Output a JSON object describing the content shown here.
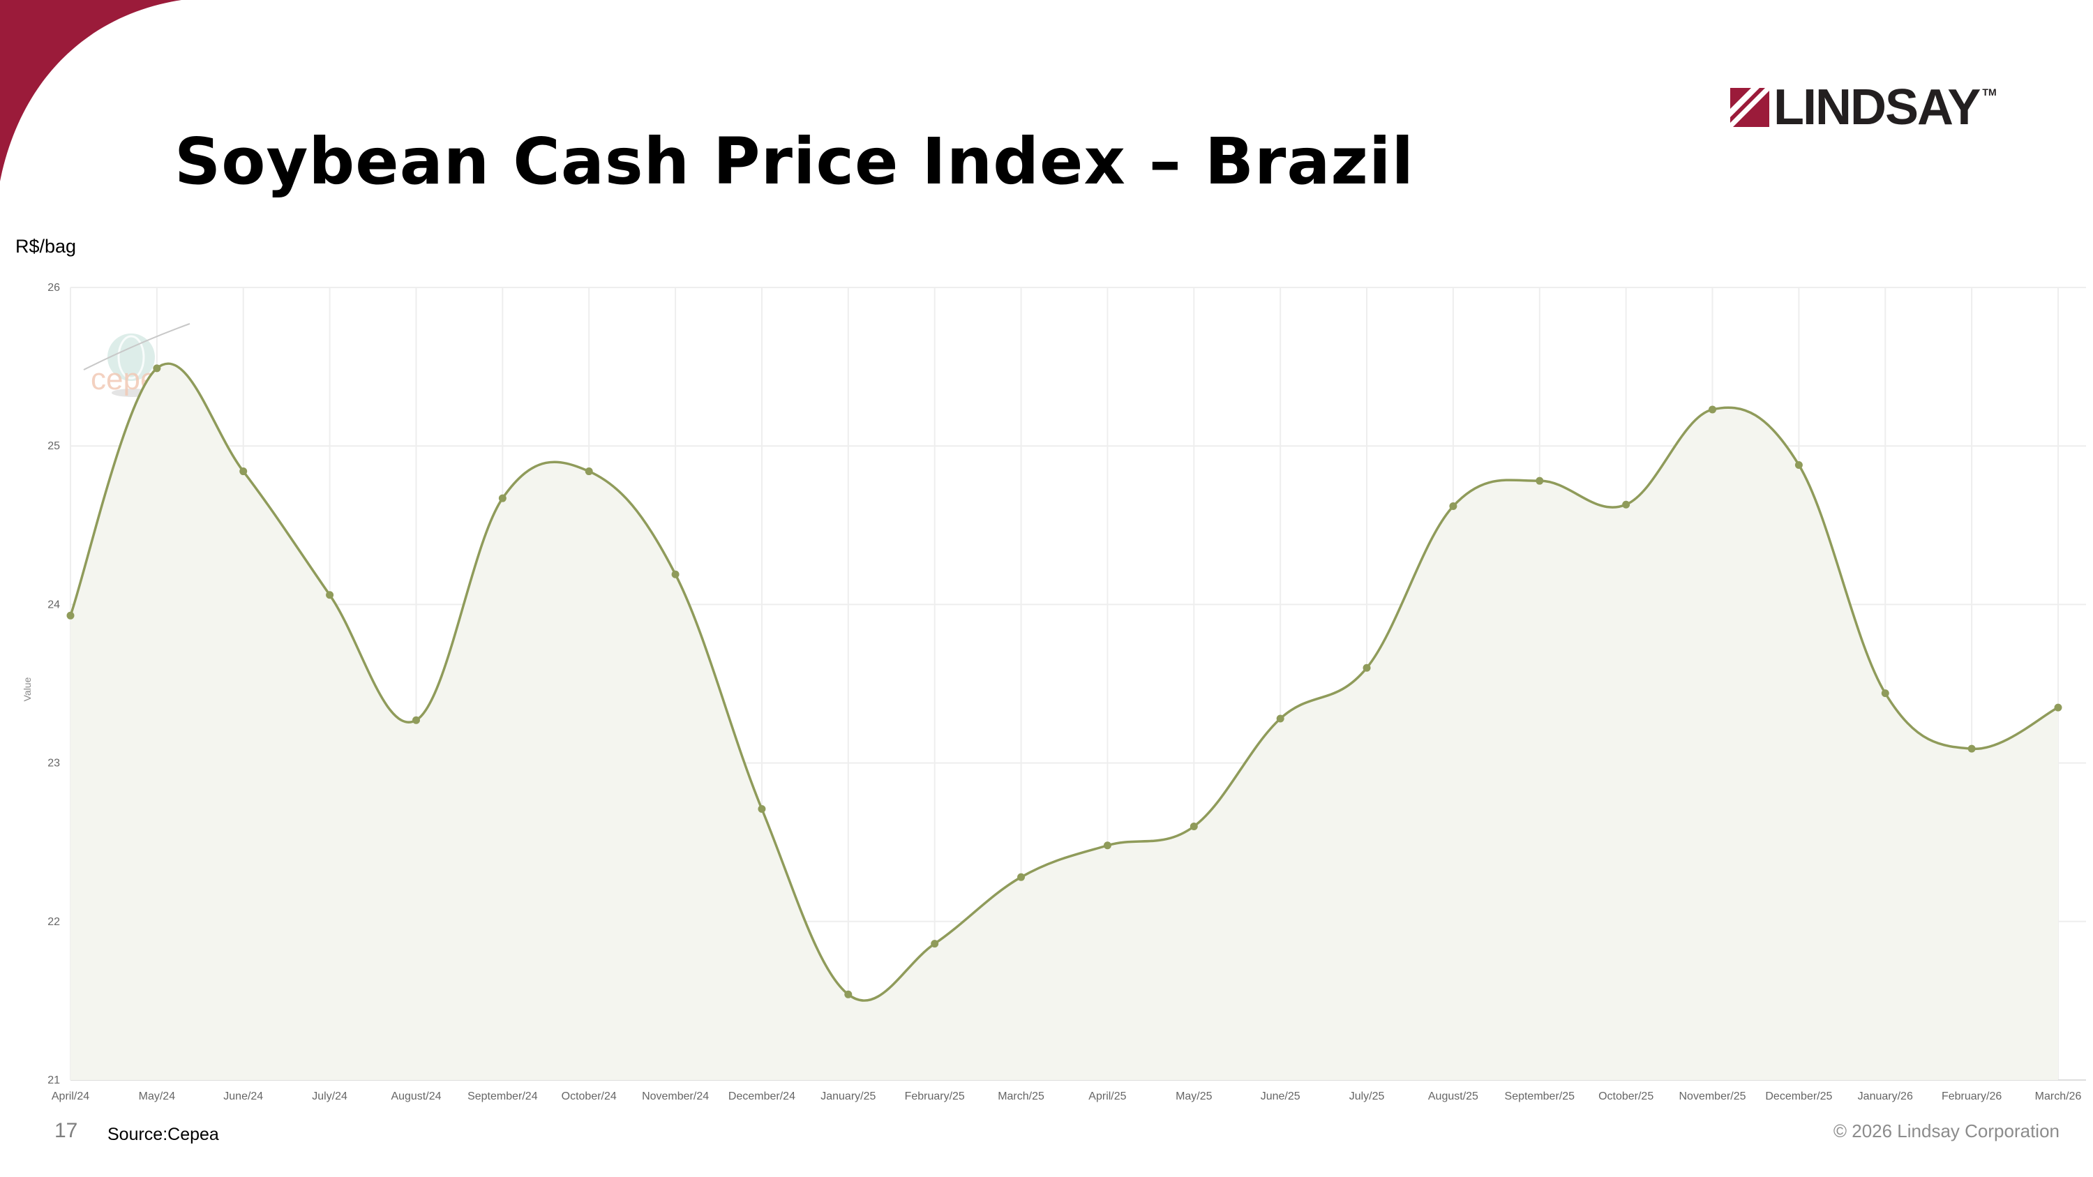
{
  "slide": {
    "title": "Soybean Cash Price Index – Brazil",
    "unit_label": "R$/bag",
    "page_number": "17",
    "source": "Source:Cepea",
    "copyright": "© 2026 Lindsay Corporation",
    "logo_text": "LINDSAY",
    "logo_tm": "TM",
    "watermark_text": "cepea"
  },
  "colors": {
    "brand": "#9b1b3a",
    "series_line": "#8f9b5a",
    "series_fill": "#f4f5ef",
    "grid": "#eeeeee"
  },
  "chart_data": {
    "type": "area",
    "ylabel": "Value",
    "ylim": [
      21,
      26
    ],
    "yticks": [
      21,
      22,
      23,
      24,
      25,
      26
    ],
    "grid": true,
    "categories": [
      "April/24",
      "May/24",
      "June/24",
      "July/24",
      "August/24",
      "September/24",
      "October/24",
      "November/24",
      "December/24",
      "January/25",
      "February/25",
      "March/25",
      "April/25",
      "May/25",
      "June/25",
      "July/25",
      "August/25",
      "September/25",
      "October/25",
      "November/25",
      "December/25",
      "January/26",
      "February/26",
      "March/26"
    ],
    "series": [
      {
        "values": [
          23.93,
          25.49,
          24.84,
          24.06,
          23.27,
          24.67,
          24.84,
          24.19,
          22.71,
          21.54,
          21.86,
          22.28,
          22.48,
          22.6,
          23.28,
          23.6,
          24.62,
          24.78,
          24.63,
          25.23,
          24.88,
          23.44,
          23.09,
          23.35
        ]
      }
    ]
  }
}
